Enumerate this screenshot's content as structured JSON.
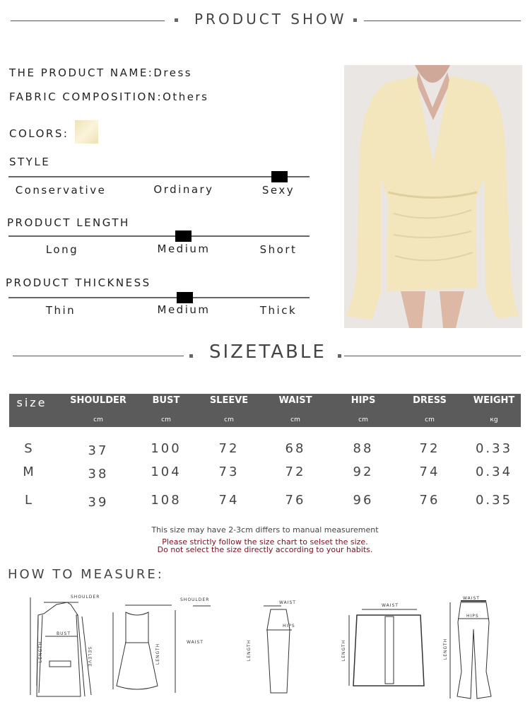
{
  "product_show": {
    "title": "PRODUCT SHOW"
  },
  "product": {
    "name_label": "THE PRODUCT NAME:",
    "name_value": "Dress",
    "fabric_label": "FABRIC COMPOSITION:",
    "fabric_value": "Others",
    "colors_label": "COLORS:",
    "color_swatch": "#f3e7c0"
  },
  "scales": [
    {
      "title": "STYLE",
      "options": [
        "Conservative",
        "Ordinary",
        "Sexy"
      ],
      "selected": "Sexy"
    },
    {
      "title": "PRODUCT LENGTH",
      "options": [
        "Long",
        "Medium",
        "Short"
      ],
      "selected": "Medium"
    },
    {
      "title": "PRODUCT THICKNESS",
      "options": [
        "Thin",
        "Medium",
        "Thick"
      ],
      "selected": "Medium"
    }
  ],
  "sizetable": {
    "title": "SIZETABLE",
    "header_bg": "#5b5b5b",
    "size_label": "size",
    "columns": [
      {
        "name": "SHOULDER",
        "unit": "cm"
      },
      {
        "name": "BUST",
        "unit": "cm"
      },
      {
        "name": "SLEEVE",
        "unit": "cm"
      },
      {
        "name": "WAIST",
        "unit": "cm"
      },
      {
        "name": "HIPS",
        "unit": "cm"
      },
      {
        "name": "DRESS",
        "unit": "cm"
      },
      {
        "name": "WEIGHT",
        "unit": "кg"
      }
    ],
    "rows": [
      {
        "size": "S",
        "values": [
          "37",
          "100",
          "72",
          "68",
          "88",
          "72",
          "0.33"
        ]
      },
      {
        "size": "M",
        "values": [
          "38",
          "104",
          "73",
          "72",
          "92",
          "74",
          "0.34"
        ]
      },
      {
        "size": "L",
        "values": [
          "39",
          "108",
          "74",
          "76",
          "96",
          "76",
          "0.35"
        ]
      }
    ],
    "note1": "This size may have 2-3cm differs to manual measurement",
    "note2": "Please strictly follow the size chart to selset the size.",
    "note3": "Do not select the size directly according to your habits.",
    "warning_color": "#7a1020"
  },
  "measure": {
    "title": "HOW TO MEASURE:",
    "labels": {
      "shoulder": "SHOULDER",
      "bust": "BUST",
      "length": "LENGTH",
      "sleeve": "SELEVE",
      "waist": "WAIST",
      "hips": "HIPS"
    }
  }
}
